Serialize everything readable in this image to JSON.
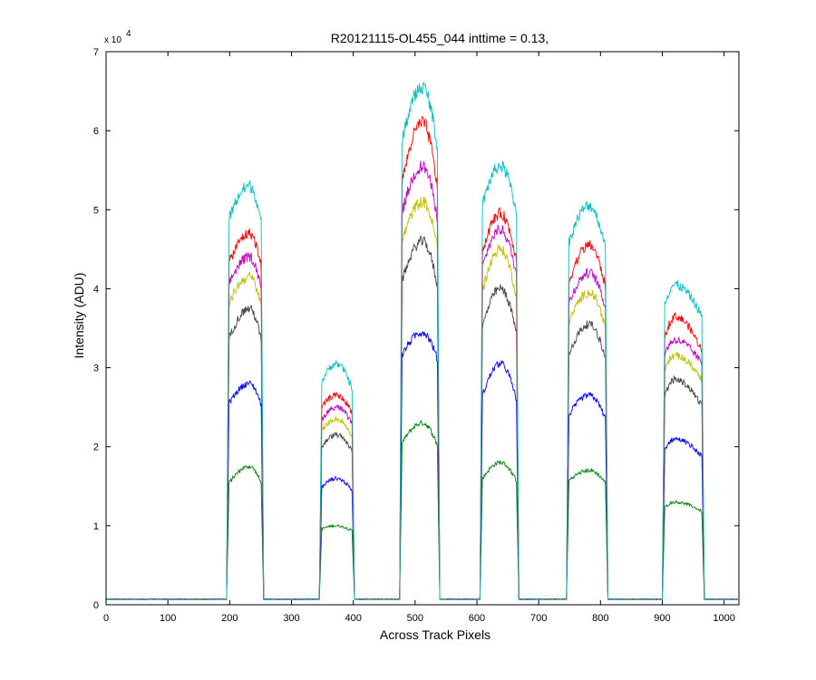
{
  "chart_data": {
    "type": "line",
    "title": "R20121115-OL455_044 inttime = 0.13,",
    "xlabel": "Across Track Pixels",
    "ylabel": "Intensity (ADU)",
    "xlim": [
      0,
      1024
    ],
    "ylim": [
      0,
      70000
    ],
    "xticks": [
      0,
      100,
      200,
      300,
      400,
      500,
      600,
      700,
      800,
      900,
      1000
    ],
    "yticks": [
      0,
      1,
      2,
      3,
      4,
      5,
      6,
      7
    ],
    "y_exponent_label": "x 10",
    "y_exponent": "4",
    "grid": false,
    "legend": "none",
    "baseline": 700,
    "bands": [
      {
        "x_start": 195,
        "x_end": 255,
        "peak_x": 232
      },
      {
        "x_start": 345,
        "x_end": 402,
        "peak_x": 372
      },
      {
        "x_start": 475,
        "x_end": 540,
        "peak_x": 512
      },
      {
        "x_start": 605,
        "x_end": 668,
        "peak_x": 638
      },
      {
        "x_start": 745,
        "x_end": 812,
        "peak_x": 782
      },
      {
        "x_start": 900,
        "x_end": 968,
        "peak_x": 920
      }
    ],
    "series": [
      {
        "color": "#008000",
        "edge": [
          15000,
          9500,
          20000,
          15500,
          15500,
          12000
        ],
        "peak": [
          17500,
          10000,
          23000,
          18000,
          17000,
          13000
        ]
      },
      {
        "color": "#0000ff",
        "edge": [
          25000,
          14500,
          31000,
          25500,
          23500,
          19000
        ],
        "peak": [
          28000,
          16000,
          34500,
          30500,
          26500,
          21000
        ]
      },
      {
        "color": "#404040",
        "edge": [
          33000,
          19500,
          40000,
          34000,
          31000,
          25500
        ],
        "peak": [
          37500,
          21500,
          46000,
          40000,
          35500,
          28500
        ]
      },
      {
        "color": "#bfbf00",
        "edge": [
          37500,
          21500,
          45000,
          38500,
          35000,
          29000
        ],
        "peak": [
          41500,
          23500,
          51000,
          45000,
          39500,
          31500
        ]
      },
      {
        "color": "#bf00bf",
        "edge": [
          40000,
          23000,
          48500,
          41500,
          37500,
          31000
        ],
        "peak": [
          44000,
          25000,
          55500,
          47500,
          42000,
          33500
        ]
      },
      {
        "color": "#ff0000",
        "edge": [
          42500,
          24500,
          52000,
          43500,
          40000,
          32500
        ],
        "peak": [
          47000,
          26500,
          61000,
          49500,
          45500,
          36500
        ]
      },
      {
        "color": "#00bfbf",
        "edge": [
          48000,
          27500,
          57500,
          49500,
          45000,
          37000
        ],
        "peak": [
          53000,
          30500,
          65500,
          55500,
          50500,
          40500
        ]
      }
    ]
  }
}
